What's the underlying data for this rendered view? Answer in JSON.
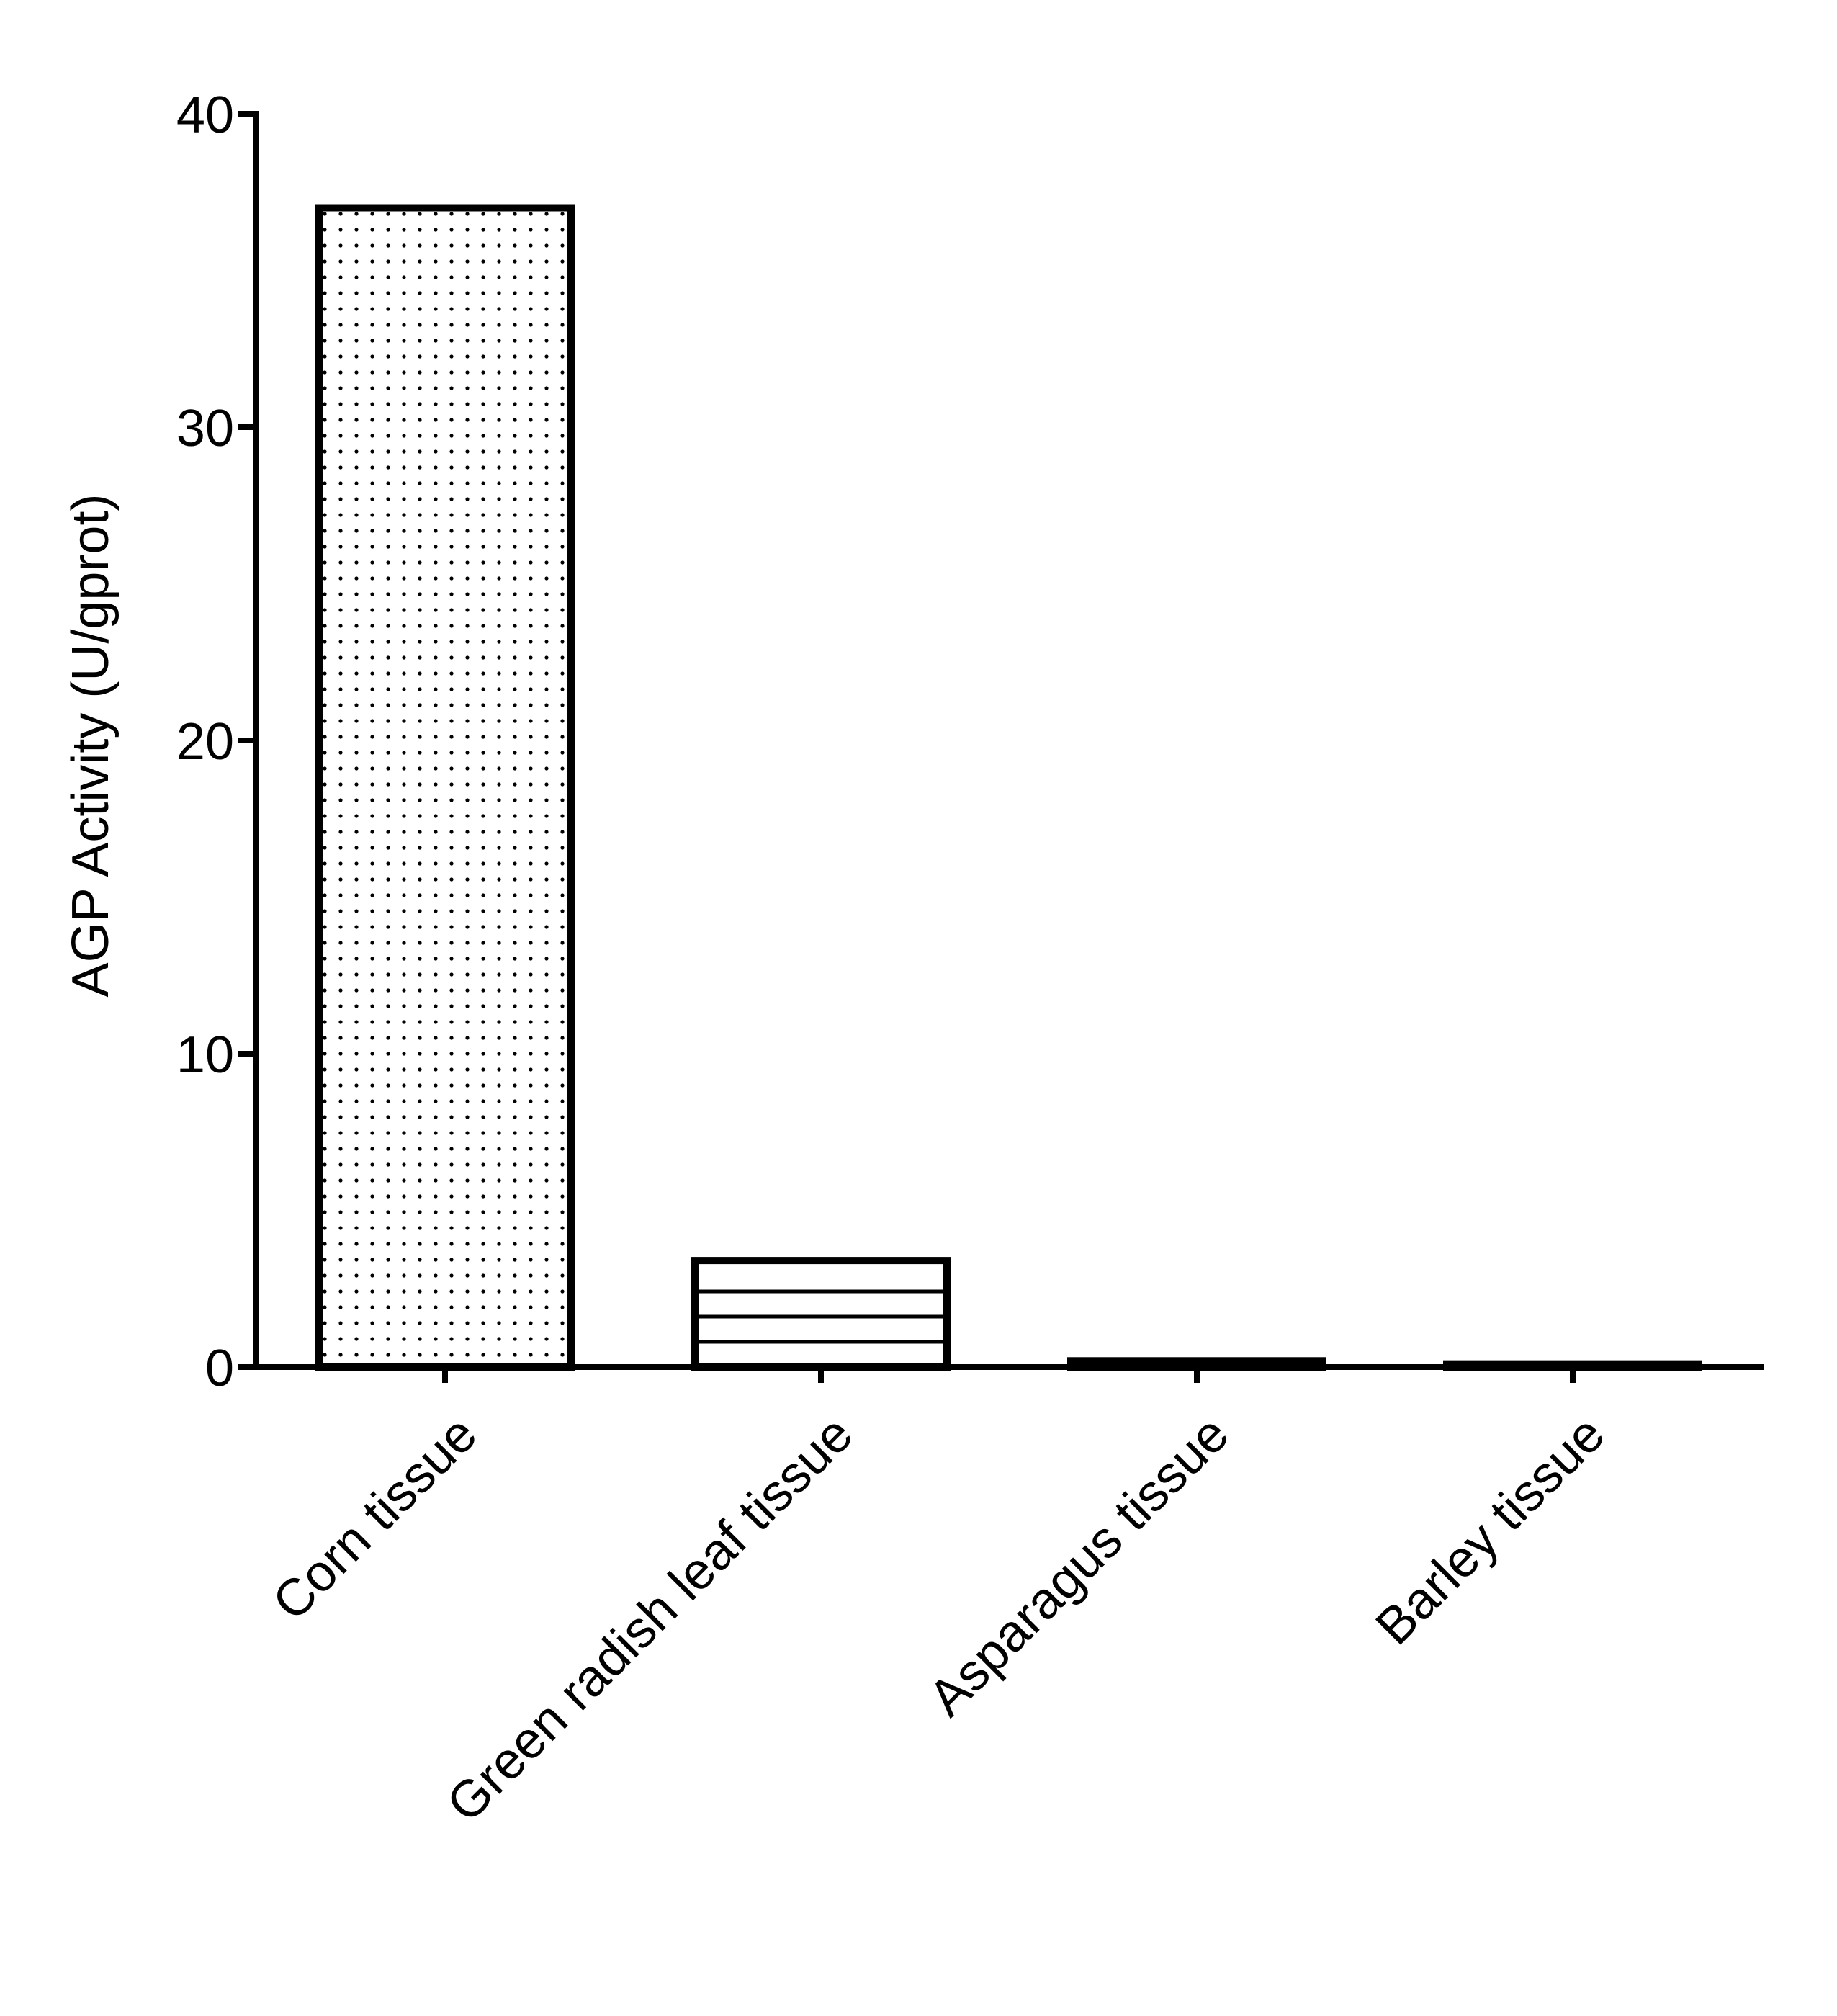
{
  "chart_data": {
    "type": "bar",
    "title": "",
    "xlabel": "",
    "ylabel": "AGP Activity (U/gprot)",
    "ylim": [
      0,
      40
    ],
    "yticks": [
      0,
      10,
      20,
      30,
      40
    ],
    "ytick_labels": [
      "0",
      "10",
      "20",
      "30",
      "40"
    ],
    "categories": [
      "Corn tissue",
      "Green radish leaf tissue",
      "Asparagus tissue",
      "Barley tissue"
    ],
    "values": [
      37.0,
      3.4,
      0.2,
      0.1
    ],
    "bar_patterns": [
      "dots",
      "horizontal-lines",
      "solid",
      "solid"
    ],
    "grid": false,
    "legend": "none",
    "colors": {
      "stroke": "#000000",
      "fill": "#ffffff",
      "pattern": "#000000"
    }
  }
}
